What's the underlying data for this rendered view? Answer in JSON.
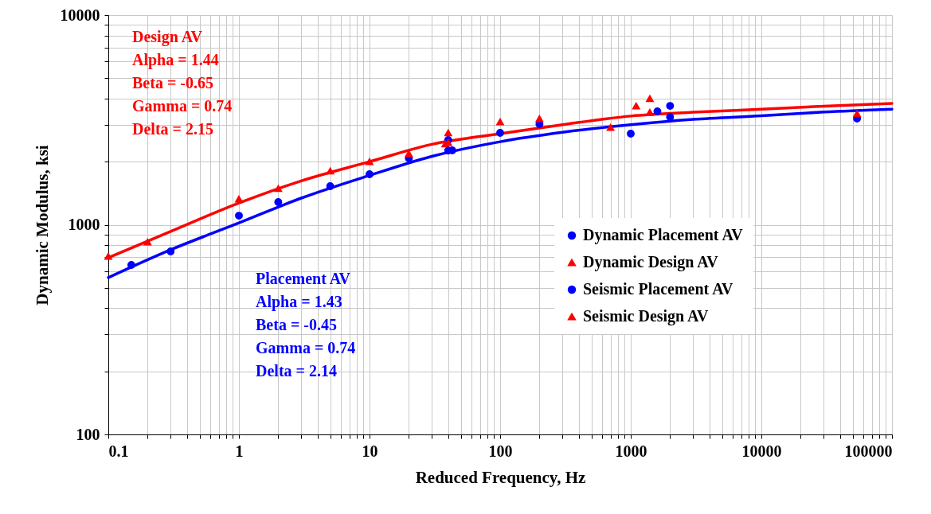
{
  "chart_data": {
    "type": "scatter",
    "xlabel": "Reduced Frequency, Hz",
    "ylabel": "Dynamic Modulus, ksi",
    "log": "xy",
    "xlim": [
      0.1,
      100000
    ],
    "ylim": [
      100,
      10000
    ],
    "xticks": [
      0.1,
      1,
      10,
      100,
      1000,
      10000,
      100000
    ],
    "yticks": [
      100,
      1000,
      10000
    ],
    "grid": true,
    "legend": "right",
    "series": [
      {
        "type": "line",
        "color": "#ff0000",
        "marker": "none",
        "x": [
          0.1,
          0.3,
          1,
          3,
          10,
          30,
          100,
          300,
          1000,
          3000,
          10000,
          30000,
          100000
        ],
        "values": [
          696,
          930,
          1270,
          1620,
          2000,
          2420,
          2720,
          3000,
          3300,
          3440,
          3560,
          3680,
          3790
        ]
      },
      {
        "type": "line",
        "color": "#0000ff",
        "marker": "none",
        "x": [
          0.1,
          0.3,
          1,
          3,
          10,
          30,
          100,
          300,
          1000,
          3000,
          10000,
          30000,
          100000
        ],
        "values": [
          560,
          760,
          1020,
          1340,
          1720,
          2120,
          2490,
          2760,
          3000,
          3180,
          3310,
          3450,
          3560
        ]
      },
      {
        "name": "Dynamic Placement AV",
        "color": "#0000ff",
        "marker": "circle",
        "x": [
          0.15,
          0.3,
          1,
          2,
          5,
          10,
          20,
          40,
          43,
          100,
          200,
          1000,
          1600,
          2000
        ],
        "values": [
          643,
          746,
          1105,
          1283,
          1528,
          1742,
          2074,
          2536,
          2264,
          2744,
          3020,
          2720,
          3475,
          3690
        ]
      },
      {
        "name": "Dynamic Design AV",
        "color": "#ff0000",
        "marker": "triangle",
        "x": [
          0.1,
          0.2,
          1,
          2,
          5,
          10,
          20,
          38,
          40,
          100,
          200,
          700,
          1100,
          1400
        ],
        "values": [
          708,
          828,
          1328,
          1489,
          1804,
          2003,
          2186,
          2430,
          2744,
          3100,
          3210,
          2915,
          3690,
          4000
        ]
      },
      {
        "name": "Seismic Placement AV",
        "color": "#0000ff",
        "marker": "circle",
        "x": [
          40,
          2000,
          54000
        ],
        "values": [
          2260,
          3267,
          3210
        ]
      },
      {
        "name": "Seismic Design AV",
        "color": "#ff0000",
        "marker": "triangle",
        "x": [
          40,
          1400,
          54000
        ],
        "values": [
          2470,
          3443,
          3385
        ]
      }
    ],
    "annotations": [
      "Design AV\nAlpha = 1.44\nBeta = -0.65\nGamma = 0.74\nDelta = 2.15",
      "Placement AV\nAlpha = 1.43\nBeta = -0.45\nGamma = 0.74\nDelta = 2.14"
    ]
  }
}
